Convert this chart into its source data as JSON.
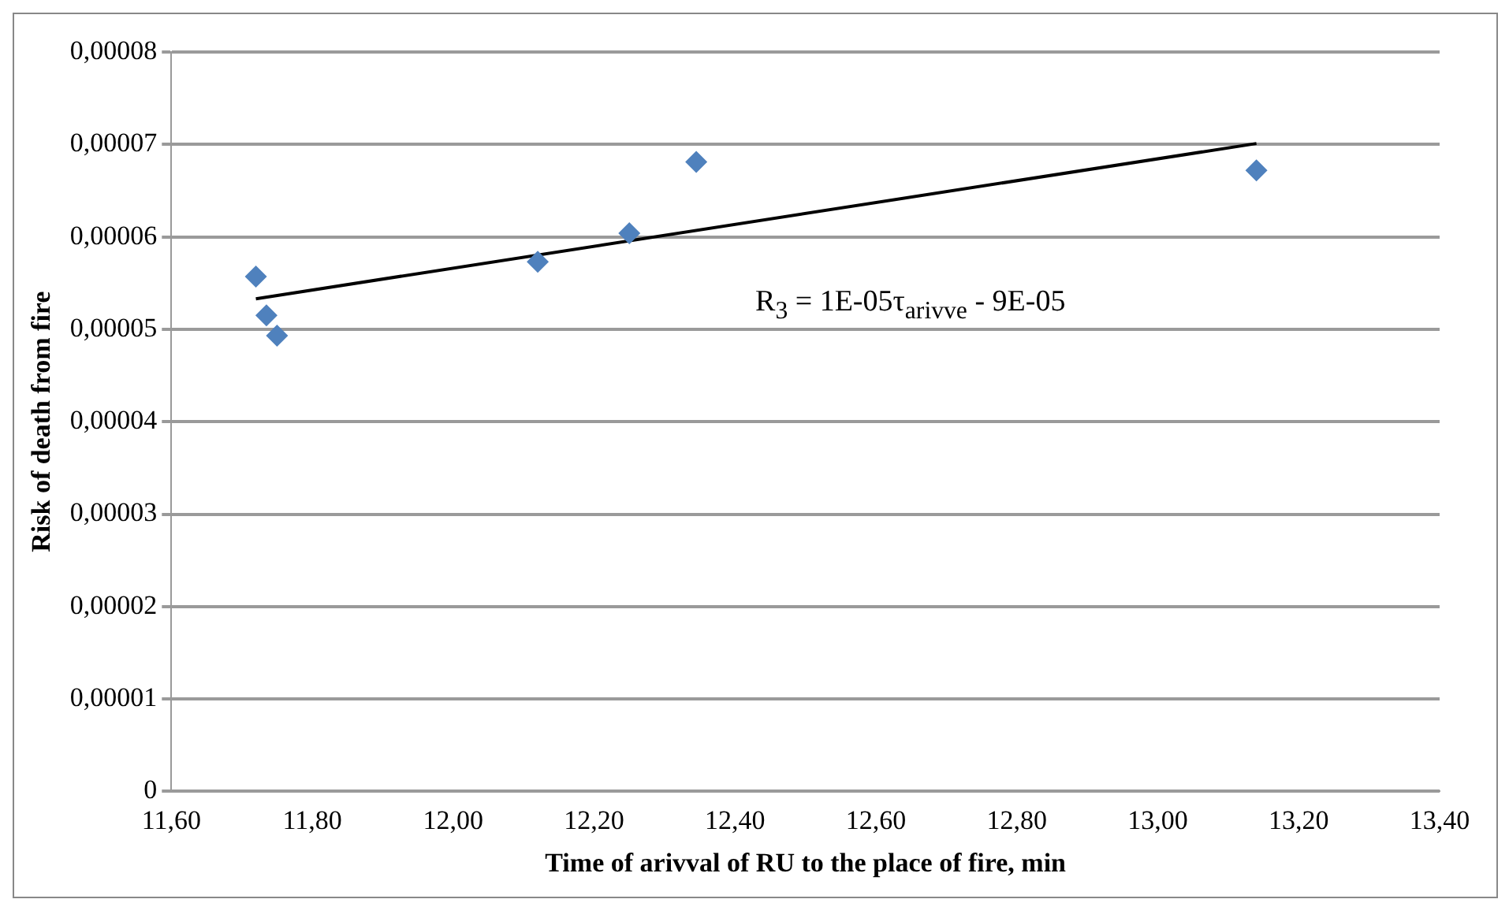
{
  "chart_data": {
    "type": "scatter",
    "xlabel": "Time of arivval of RU to the place of fire, min",
    "ylabel": "Risk of death from fire",
    "series": [
      {
        "color": "#4f81bd",
        "x": [
          11.72,
          11.735,
          11.75,
          12.12,
          12.25,
          12.345,
          13.14
        ],
        "values": [
          5.57e-05,
          5.15e-05,
          4.93e-05,
          5.73e-05,
          6.04e-05,
          6.81e-05,
          6.72e-05
        ],
        "marker": "diamond"
      },
      {
        "type": "line",
        "color": "#000000",
        "x": [
          11.72,
          13.14
        ],
        "values": [
          5.33e-05,
          7.01e-05
        ],
        "marker": "none",
        "line_style": "solid"
      }
    ],
    "annotations": [
      "R$_{3}$ = 1E-05τ$_{arivve}$ - 9E-05"
    ],
    "xlim": [
      11.6,
      13.4
    ],
    "xticks": [
      {
        "value": 11.6,
        "label": "11,60"
      },
      {
        "value": 11.8,
        "label": "11,80"
      },
      {
        "value": 12,
        "label": "12,00"
      },
      {
        "value": 12.2,
        "label": "12,20"
      },
      {
        "value": 12.4,
        "label": "12,40"
      },
      {
        "value": 12.6,
        "label": "12,60"
      },
      {
        "value": 12.8,
        "label": "12,80"
      },
      {
        "value": 13,
        "label": "13,00"
      },
      {
        "value": 13.2,
        "label": "13,20"
      },
      {
        "value": 13.4,
        "label": "13,40"
      }
    ],
    "ylim": [
      0,
      8e-05
    ],
    "yticks": [
      0,
      {
        "value": 1e-05,
        "label": "0,00001"
      },
      {
        "value": 2e-05,
        "label": "0,00002"
      },
      {
        "value": 3e-05,
        "label": "0,00003"
      },
      {
        "value": 4e-05,
        "label": "0,00004"
      },
      {
        "value": 5e-05,
        "label": "0,00005"
      },
      {
        "value": 6e-05,
        "label": "0,00006"
      },
      {
        "value": 7e-05,
        "label": "0,00007"
      },
      {
        "value": 8e-05,
        "label": "0,00008"
      }
    ],
    "grid": "y",
    "legend": false
  }
}
